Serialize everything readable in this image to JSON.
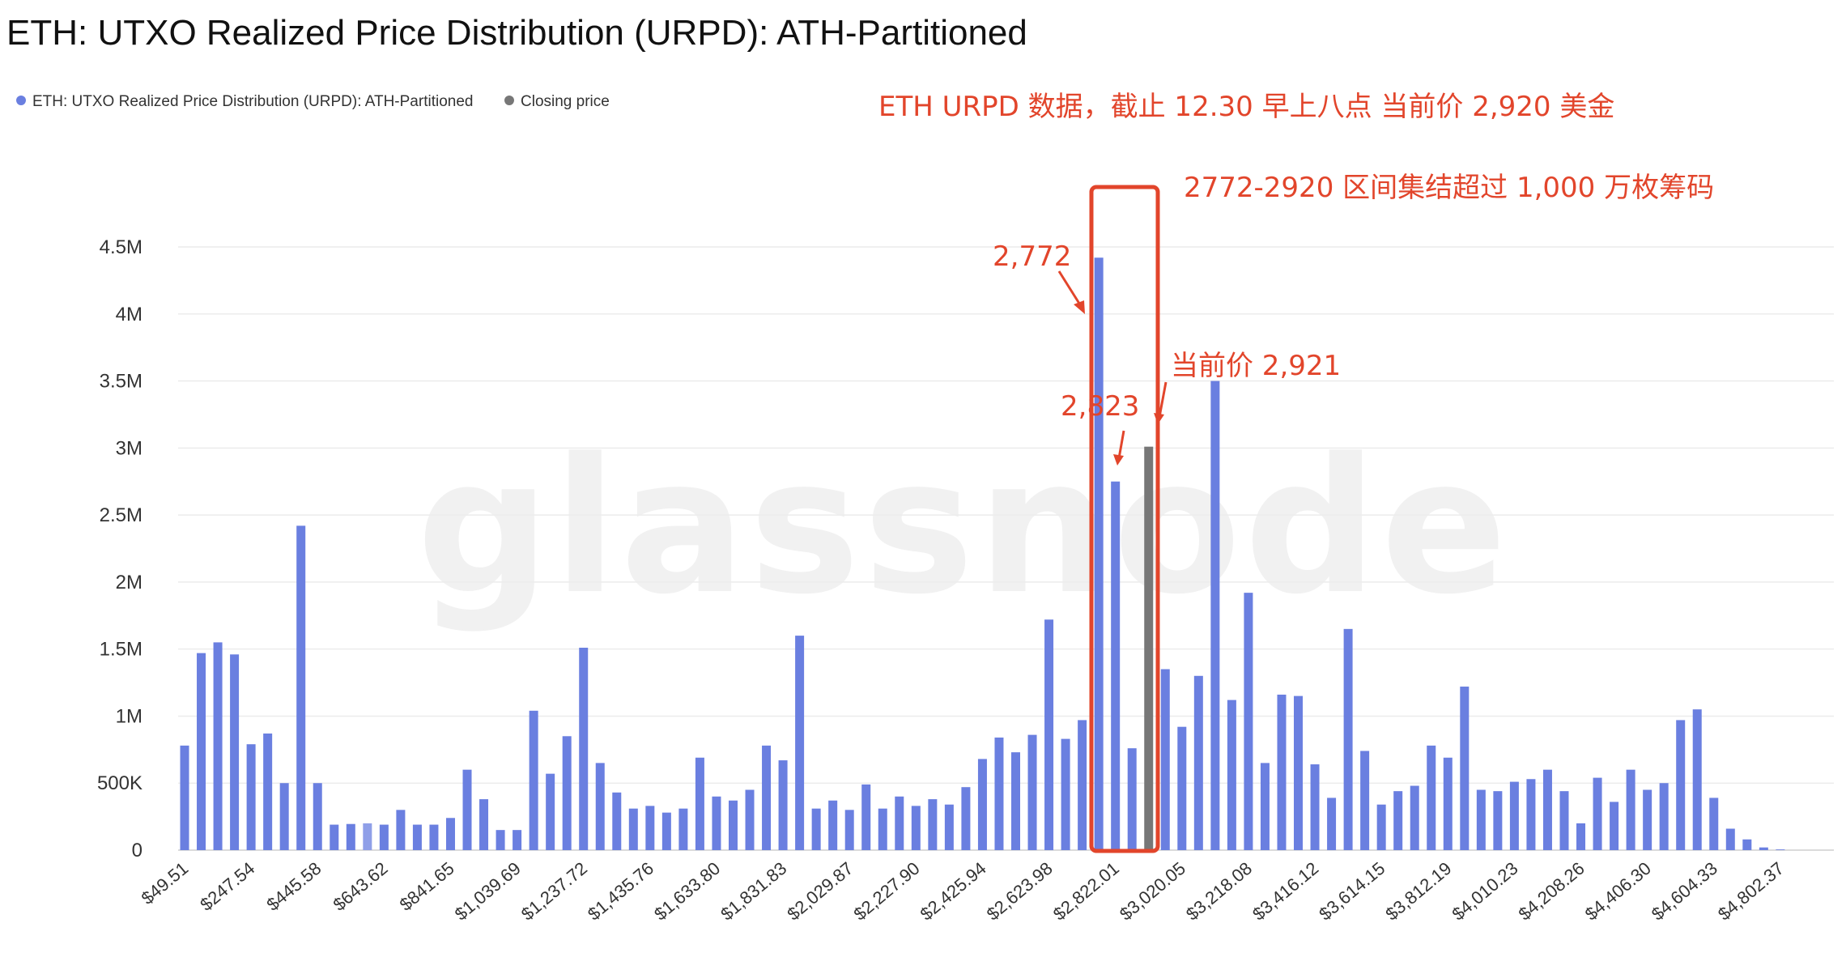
{
  "chart_data": {
    "type": "bar",
    "title": "ETH: UTXO Realized Price Distribution (URPD): ATH-Partitioned",
    "xlabel": "",
    "ylabel": "",
    "ylim": [
      0,
      4500000
    ],
    "y_ticks": [
      0,
      500000,
      1000000,
      1500000,
      2000000,
      2500000,
      3000000,
      3500000,
      4000000,
      4500000
    ],
    "y_tick_labels": [
      "0",
      "500K",
      "1M",
      "1.5M",
      "2M",
      "2.5M",
      "3M",
      "3.5M",
      "4M",
      "4.5M"
    ],
    "x_tick_labels": [
      "$49.51",
      "$247.54",
      "$445.58",
      "$643.62",
      "$841.65",
      "$1,039.69",
      "$1,237.72",
      "$1,435.76",
      "$1,633.80",
      "$1,831.83",
      "$2,029.87",
      "$2,227.90",
      "$2,425.94",
      "$2,623.98",
      "$2,822.01",
      "$3,020.05",
      "$3,218.08",
      "$3,416.12",
      "$3,614.15",
      "$3,812.19",
      "$4,010.23",
      "$4,208.26",
      "$4,406.30",
      "$4,604.33",
      "$4,802.37"
    ],
    "x_tick_every": 4,
    "legend": [
      {
        "name": "ETH: UTXO Realized Price Distribution (URPD): ATH-Partitioned",
        "color": "#6a7fe0"
      },
      {
        "name": "Closing price",
        "color": "#777777"
      }
    ],
    "legend_position": "top-left",
    "watermark": "glassnode",
    "bar_color": "#6a7fe0",
    "bar_color_highlight": "#8f9fe8",
    "closing_price_color": "#777777",
    "closing_price_index": 58,
    "highlight_index": 11,
    "values": [
      780000,
      1470000,
      1550000,
      1460000,
      790000,
      870000,
      500000,
      2420000,
      500000,
      190000,
      195000,
      200000,
      190000,
      300000,
      190000,
      190000,
      240000,
      600000,
      380000,
      150000,
      150000,
      1040000,
      570000,
      850000,
      1510000,
      650000,
      430000,
      310000,
      330000,
      280000,
      310000,
      690000,
      400000,
      370000,
      450000,
      780000,
      670000,
      1600000,
      310000,
      370000,
      300000,
      490000,
      310000,
      400000,
      330000,
      380000,
      340000,
      470000,
      680000,
      840000,
      730000,
      860000,
      1720000,
      830000,
      970000,
      4420000,
      2750000,
      760000,
      3010000,
      1350000,
      920000,
      1300000,
      3500000,
      1120000,
      1920000,
      650000,
      1160000,
      1150000,
      640000,
      390000,
      1650000,
      740000,
      340000,
      440000,
      480000,
      780000,
      690000,
      1220000,
      450000,
      440000,
      510000,
      530000,
      600000,
      440000,
      200000,
      540000,
      360000,
      600000,
      450000,
      500000,
      970000,
      1050000,
      390000,
      160000,
      80000,
      20000,
      5000
    ]
  },
  "annotations": {
    "headline": "ETH URPD 数据，截止 12.30 早上八点 当前价 2,920 美金",
    "range_note": "2772-2920 区间集结超过 1,000 万枚筹码",
    "label_2772": "2,772",
    "label_2823": "2,823",
    "label_current": "当前价 2,921",
    "color": "#e2452b"
  }
}
